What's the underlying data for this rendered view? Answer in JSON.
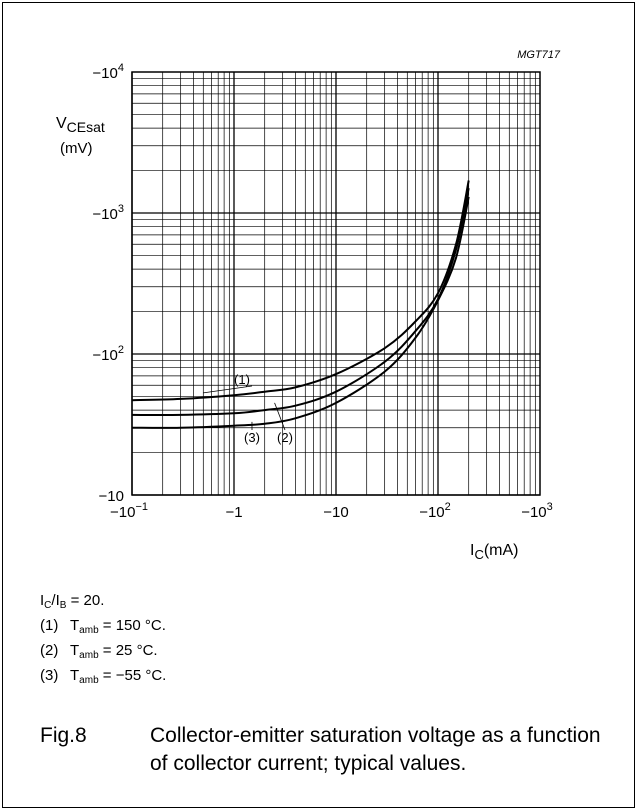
{
  "chart_data": {
    "type": "line",
    "code": "MGT717",
    "xlabel": "I",
    "xlabel_sub": "C",
    "xunit": "(mA)",
    "ylabel": "V",
    "ylabel_sub": "CEsat",
    "yunit": "(mV)",
    "x_log_scale": true,
    "y_log_scale": true,
    "xlim": [
      -0.1,
      -1000
    ],
    "ylim": [
      -10,
      -10000
    ],
    "grid": true,
    "x_ticks": [
      {
        "value": -0.1,
        "base": "−10",
        "exp": "−1"
      },
      {
        "value": -1,
        "base": "−1",
        "exp": ""
      },
      {
        "value": -10,
        "base": "−10",
        "exp": ""
      },
      {
        "value": -100,
        "base": "−10",
        "exp": "2"
      },
      {
        "value": -1000,
        "base": "−10",
        "exp": "3"
      }
    ],
    "y_ticks": [
      {
        "value": -10,
        "base": "−10",
        "exp": ""
      },
      {
        "value": -100,
        "base": "−10",
        "exp": "2"
      },
      {
        "value": -1000,
        "base": "−10",
        "exp": "3"
      },
      {
        "value": -10000,
        "base": "−10",
        "exp": "4"
      }
    ],
    "series": [
      {
        "name": "(1)",
        "x": [
          -0.1,
          -0.3,
          -1,
          -2,
          -4,
          -10,
          -30,
          -60,
          -100,
          -150,
          -200
        ],
        "y": [
          -47,
          -48,
          -51,
          -54,
          -58,
          -72,
          -110,
          -170,
          -270,
          -600,
          -1700
        ]
      },
      {
        "name": "(2)",
        "x": [
          -0.1,
          -0.3,
          -1,
          -2,
          -4,
          -10,
          -30,
          -60,
          -100,
          -150,
          -200
        ],
        "y": [
          -37,
          -37,
          -38,
          -40,
          -43,
          -54,
          -88,
          -145,
          -245,
          -550,
          -1500
        ]
      },
      {
        "name": "(3)",
        "x": [
          -0.1,
          -0.3,
          -1,
          -2,
          -4,
          -10,
          -30,
          -60,
          -100,
          -150,
          -200
        ],
        "y": [
          -30,
          -30,
          -31,
          -32,
          -35,
          -45,
          -75,
          -130,
          -240,
          -480,
          -1300
        ]
      }
    ],
    "curve_labels": [
      {
        "text": "(1)"
      },
      {
        "text": "(2)"
      },
      {
        "text": "(3)"
      }
    ]
  },
  "notes": {
    "ratio": {
      "i1": "I",
      "s1": "C",
      "mid": "/I",
      "s2": "B",
      "tail": " = 20."
    },
    "items": [
      {
        "num": "(1)",
        "t": "T",
        "sub": "amb",
        "val": " = 150 °C."
      },
      {
        "num": "(2)",
        "t": "T",
        "sub": "amb",
        "val": " = 25 °C."
      },
      {
        "num": "(3)",
        "t": "T",
        "sub": "amb",
        "val": " = −55 °C."
      }
    ]
  },
  "caption": {
    "fig": "Fig.8",
    "text": "Collector-emitter saturation voltage as a function of collector current; typical values."
  }
}
